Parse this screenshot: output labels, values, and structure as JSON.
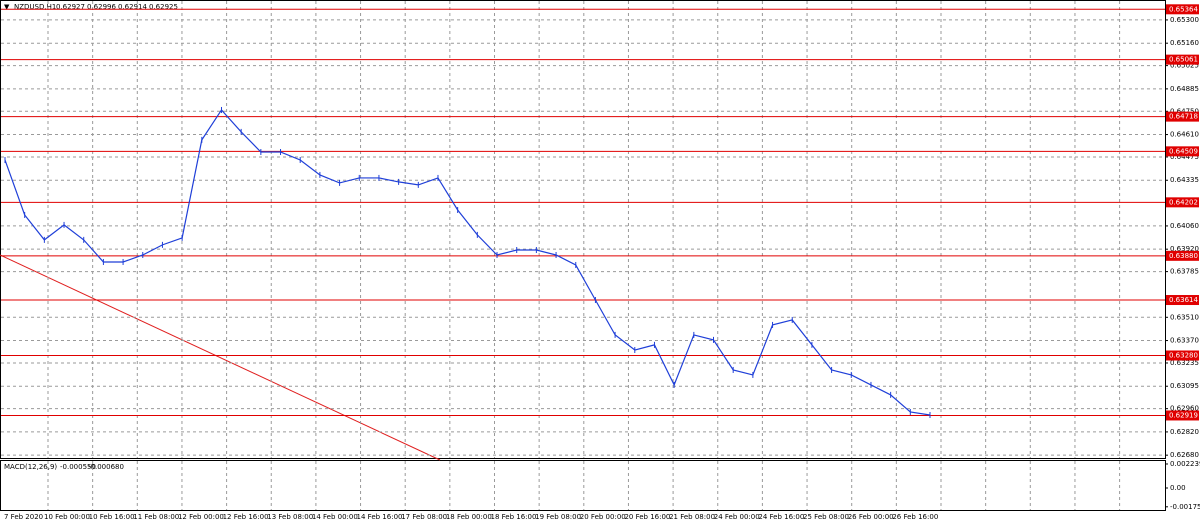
{
  "header": {
    "symbol": "NZDUSD,H1",
    "open": "0.62927",
    "high": "0.62996",
    "low": "0.62914",
    "close": "0.62925"
  },
  "price_chart": {
    "ylim": [
      0.6542,
      0.62663
    ],
    "yticks": [
      {
        "value": 0.653,
        "label": "0.65300"
      },
      {
        "value": 0.6516,
        "label": "0.65160"
      },
      {
        "value": 0.65025,
        "label": "0.65025"
      },
      {
        "value": 0.64885,
        "label": "0.64885"
      },
      {
        "value": 0.6475,
        "label": "0.64750"
      },
      {
        "value": 0.6461,
        "label": "0.64610"
      },
      {
        "value": 0.64475,
        "label": "0.64475"
      },
      {
        "value": 0.64335,
        "label": "0.64335"
      },
      {
        "value": 0.6406,
        "label": "0.64060"
      },
      {
        "value": 0.6392,
        "label": "0.63920"
      },
      {
        "value": 0.63785,
        "label": "0.63785"
      },
      {
        "value": 0.6351,
        "label": "0.63510"
      },
      {
        "value": 0.6337,
        "label": "0.63370"
      },
      {
        "value": 0.63235,
        "label": "0.63235"
      },
      {
        "value": 0.63095,
        "label": "0.63095"
      },
      {
        "value": 0.6296,
        "label": "0.62960"
      },
      {
        "value": 0.6282,
        "label": "0.62820"
      },
      {
        "value": 0.6268,
        "label": "0.62680"
      }
    ],
    "levels": [
      {
        "value": 0.65364,
        "label": "0.65364"
      },
      {
        "value": 0.65061,
        "label": "0.65061"
      },
      {
        "value": 0.64718,
        "label": "0.64718"
      },
      {
        "value": 0.64509,
        "label": "0.64509"
      },
      {
        "value": 0.64202,
        "label": "0.64202"
      },
      {
        "value": 0.6388,
        "label": "0.63880"
      },
      {
        "value": 0.63614,
        "label": "0.63614"
      },
      {
        "value": 0.6328,
        "label": "0.63280"
      },
      {
        "value": 0.62919,
        "label": "0.62919"
      }
    ],
    "close": [
      0.64457,
      0.64126,
      0.63976,
      0.64066,
      0.63976,
      0.63843,
      0.63843,
      0.63885,
      0.63946,
      0.63988,
      0.64578,
      0.64758,
      0.64626,
      0.64505,
      0.64505,
      0.64457,
      0.64367,
      0.64319,
      0.64349,
      0.64349,
      0.64325,
      0.64307,
      0.64349,
      0.64156,
      0.64006,
      0.63885,
      0.63915,
      0.63915,
      0.63885,
      0.63825,
      0.63614,
      0.63404,
      0.63313,
      0.63344,
      0.63103,
      0.63404,
      0.63374,
      0.63193,
      0.63163,
      0.63464,
      0.63494,
      0.63344,
      0.63193,
      0.63163,
      0.63103,
      0.63043,
      0.6294,
      0.62922
    ],
    "x_labels": [
      "7 Feb 2020",
      "10 Feb 00:00",
      "10 Feb 16:00",
      "11 Feb 08:00",
      "12 Feb 00:00",
      "12 Feb 16:00",
      "13 Feb 08:00",
      "14 Feb 00:00",
      "14 Feb 16:00",
      "17 Feb 08:00",
      "18 Feb 00:00",
      "18 Feb 16:00",
      "19 Feb 08:00",
      "20 Feb 00:00",
      "20 Feb 16:00",
      "21 Feb 08:00",
      "24 Feb 00:00",
      "24 Feb 16:00",
      "25 Feb 08:00",
      "26 Feb 00:00",
      "26 Feb 16:00"
    ]
  },
  "macd": {
    "label": "MACD(12,26,9)",
    "main": "-0.000550",
    "signal": "-0.000680",
    "ylim": [
      0.00261,
      -0.00205
    ],
    "yticks": [
      0.002239,
      {
        "value": 0,
        "label": "0.00"
      },
      -0.001752
    ]
  }
}
